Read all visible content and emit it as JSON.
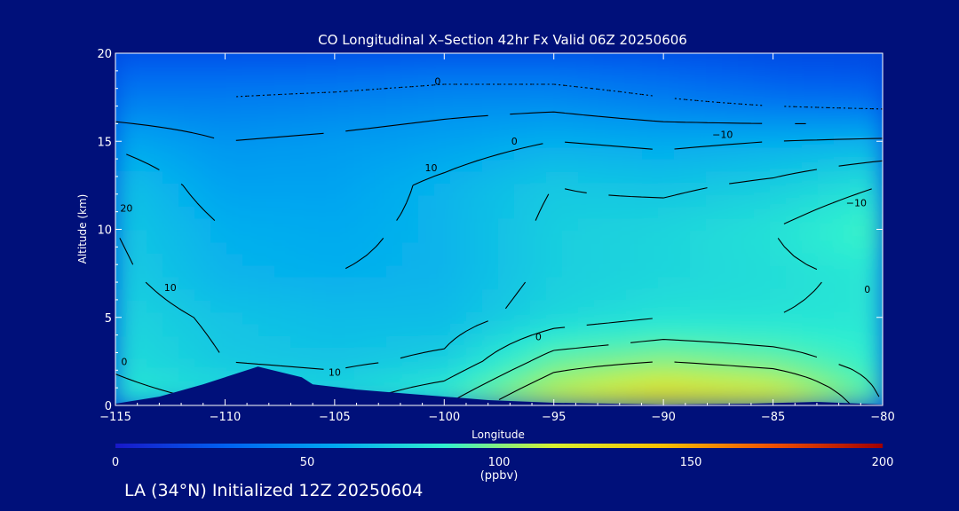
{
  "chart_data": {
    "type": "heatmap",
    "title": "CO Longitudinal X–Section 42hr  Fx Valid 06Z 20250606",
    "xlabel": "Longitude",
    "ylabel": "Altitude (km)",
    "xlim": [
      -115,
      -80
    ],
    "ylim": [
      0,
      20
    ],
    "x_ticks": [
      -115,
      -110,
      -105,
      -100,
      -95,
      -90,
      -85,
      -80
    ],
    "x_tick_labels": [
      "−115",
      "−110",
      "−105",
      "−100",
      "−95",
      "−90",
      "−85",
      "−80"
    ],
    "y_ticks": [
      0,
      5,
      10,
      15,
      20
    ],
    "y_tick_labels": [
      "0",
      "5",
      "10",
      "15",
      "20"
    ],
    "colorbar": {
      "min": 0,
      "max": 200,
      "ticks": [
        0,
        50,
        100,
        150,
        200
      ],
      "tick_labels": [
        "0",
        "50",
        "100",
        "150",
        "200"
      ],
      "unit": "(ppbv)",
      "stops": [
        "#1818c8",
        "#0060f0",
        "#00a8f0",
        "#30f0d0",
        "#d8f030",
        "#f8c000",
        "#f05000",
        "#a00000"
      ]
    },
    "x": [
      -115,
      -110,
      -105,
      -100,
      -95,
      -90,
      -85,
      -80
    ],
    "y": [
      0,
      2.5,
      5,
      7.5,
      10,
      12.5,
      15,
      17.5,
      20
    ],
    "z": [
      [
        85,
        80,
        78,
        90,
        115,
        135,
        125,
        90
      ],
      [
        78,
        70,
        68,
        72,
        95,
        100,
        95,
        85
      ],
      [
        75,
        68,
        65,
        65,
        75,
        80,
        80,
        82
      ],
      [
        72,
        62,
        60,
        62,
        72,
        75,
        78,
        82
      ],
      [
        70,
        60,
        58,
        62,
        72,
        75,
        80,
        90
      ],
      [
        68,
        55,
        55,
        62,
        70,
        68,
        72,
        80
      ],
      [
        58,
        50,
        52,
        55,
        60,
        58,
        60,
        62
      ],
      [
        40,
        40,
        42,
        45,
        45,
        40,
        35,
        32
      ],
      [
        25,
        25,
        25,
        28,
        28,
        25,
        20,
        18
      ]
    ],
    "contour_labels": [
      {
        "text": "0",
        "lon": -100.3,
        "alt": 18.2
      },
      {
        "text": "0",
        "lon": -96.8,
        "alt": 14.8
      },
      {
        "text": "10",
        "lon": -100.6,
        "alt": 13.3
      },
      {
        "text": "20",
        "lon": -114.5,
        "alt": 11.0
      },
      {
        "text": "10",
        "lon": -112.5,
        "alt": 6.5
      },
      {
        "text": "0",
        "lon": -95.7,
        "alt": 3.7
      },
      {
        "text": "0",
        "lon": -114.6,
        "alt": 2.3
      },
      {
        "text": "10",
        "lon": -105.0,
        "alt": 1.7
      },
      {
        "text": "−10",
        "lon": -87.3,
        "alt": 15.2
      },
      {
        "text": "−10",
        "lon": -81.2,
        "alt": 11.3
      },
      {
        "text": "0",
        "lon": -80.7,
        "alt": 6.4
      }
    ],
    "terrain": [
      {
        "lon": -115,
        "alt": 0.1
      },
      {
        "lon": -113,
        "alt": 0.5
      },
      {
        "lon": -111,
        "alt": 1.2
      },
      {
        "lon": -108.5,
        "alt": 2.2
      },
      {
        "lon": -106.5,
        "alt": 1.6
      },
      {
        "lon": -106,
        "alt": 1.2
      },
      {
        "lon": -104,
        "alt": 0.9
      },
      {
        "lon": -101,
        "alt": 0.6
      },
      {
        "lon": -98,
        "alt": 0.3
      },
      {
        "lon": -95,
        "alt": 0.15
      },
      {
        "lon": -90,
        "alt": 0.05
      },
      {
        "lon": -86,
        "alt": 0.1
      },
      {
        "lon": -83,
        "alt": 0.2
      },
      {
        "lon": -80,
        "alt": 0.05
      }
    ]
  },
  "caption": "LA (34°N) Initialized 12Z 20250604"
}
